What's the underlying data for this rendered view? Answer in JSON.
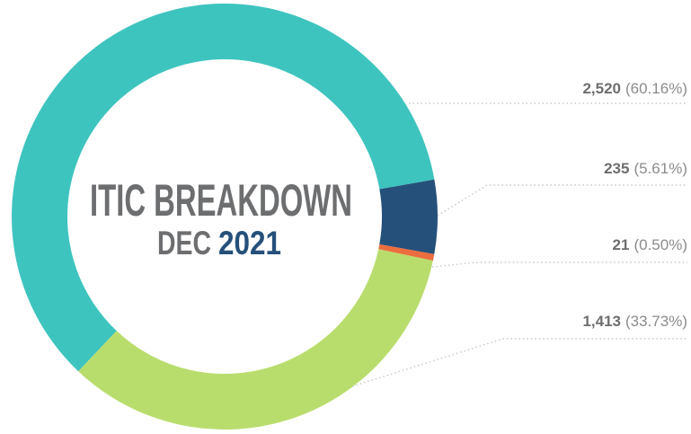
{
  "chart_data": {
    "type": "donut",
    "title": "ITIC BREAKDOWN",
    "subtitle": "DEC",
    "subtitle_year": "2021",
    "categories": [
      null,
      null,
      null,
      null
    ],
    "values": [
      2520,
      235,
      21,
      1413
    ],
    "value_labels": [
      "2,520",
      "235",
      "21",
      "1,413"
    ],
    "percent_labels": [
      "(60.16%)",
      "(5.61%)",
      "(0.50%)",
      "(33.73%)"
    ],
    "colors": [
      "#3ec4bf",
      "#25507a",
      "#ec6d3e",
      "#b9dd6d"
    ]
  }
}
